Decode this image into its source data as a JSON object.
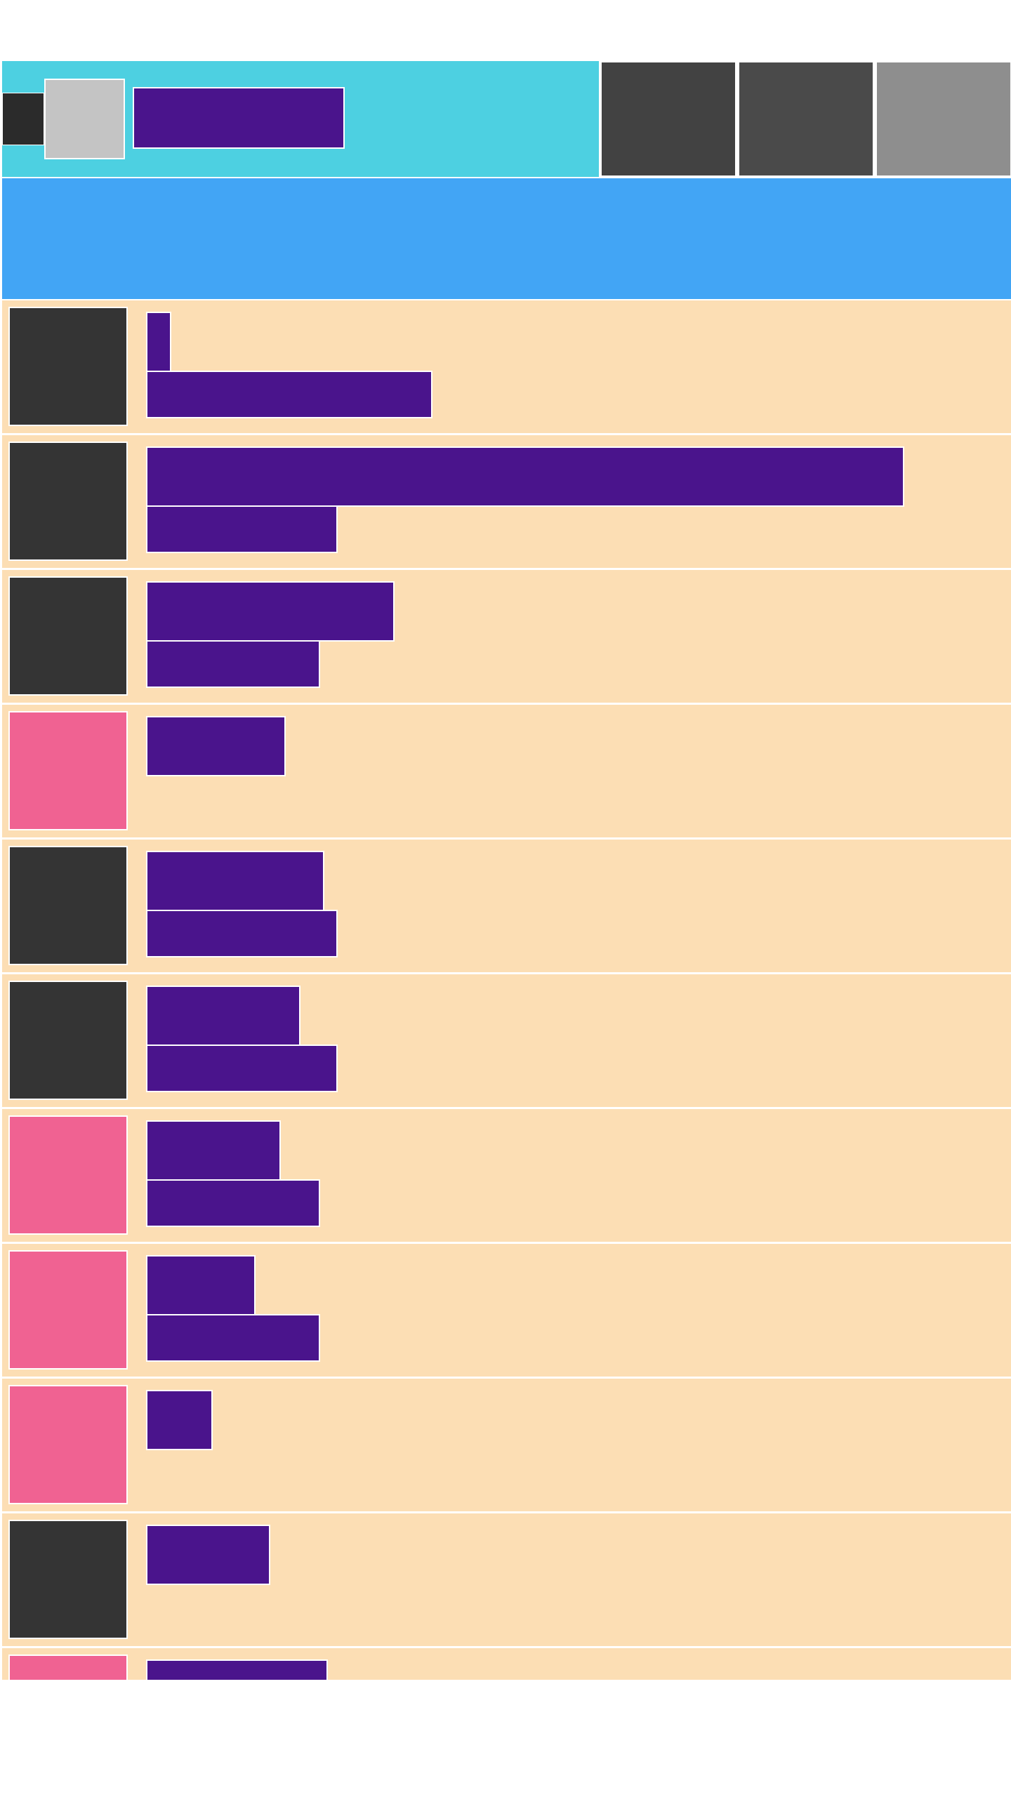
{
  "app_bar": {
    "title": "",
    "nav_icon": "menu-icon",
    "actions": [
      {
        "label": "",
        "icon": "search-icon"
      },
      {
        "label": "",
        "icon": "filter-icon"
      },
      {
        "label": "",
        "icon": "more-icon"
      }
    ]
  },
  "banner": {
    "text": ""
  },
  "list": {
    "items": [
      {
        "title": "",
        "subtitle": "",
        "thumb": "dark"
      },
      {
        "title": "",
        "subtitle": "",
        "thumb": "dark"
      },
      {
        "title": "",
        "subtitle": "",
        "thumb": "dark"
      },
      {
        "title": "",
        "subtitle": "",
        "thumb": "pink"
      },
      {
        "title": "",
        "subtitle": "",
        "thumb": "dark"
      },
      {
        "title": "",
        "subtitle": "",
        "thumb": "dark"
      },
      {
        "title": "",
        "subtitle": "",
        "thumb": "pink"
      },
      {
        "title": "",
        "subtitle": "",
        "thumb": "pink"
      },
      {
        "title": "",
        "subtitle": "",
        "thumb": "pink"
      },
      {
        "title": "",
        "subtitle": "",
        "thumb": "dark"
      },
      {
        "title": "",
        "subtitle": "",
        "thumb": "pink"
      }
    ]
  },
  "colors": {
    "app_bar": "#4dd0e1",
    "banner": "#42a5f5",
    "row_bg": "#fcdeb4",
    "text_block": "#4a148c",
    "thumb_dark": "#343434",
    "thumb_pink": "#f06292"
  }
}
